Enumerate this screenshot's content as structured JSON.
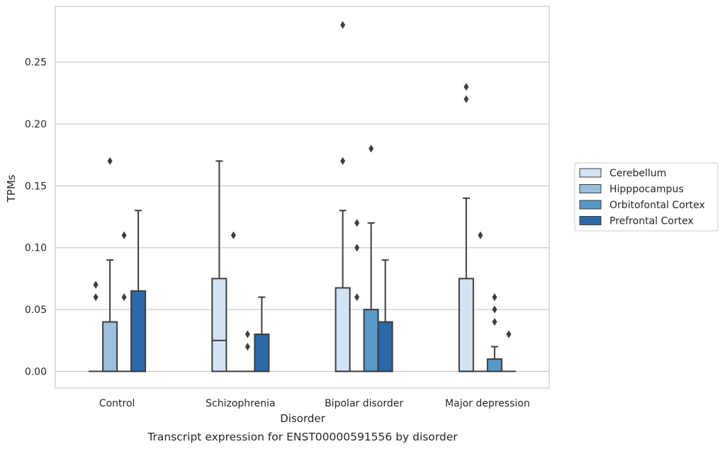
{
  "chart_data": {
    "type": "boxplot",
    "title": "",
    "caption": "Transcript expression for ENST00000591556 by disorder",
    "xlabel": "Disorder",
    "ylabel": "TPMs",
    "ylim": [
      -0.0135,
      0.295
    ],
    "yticks": [
      0.0,
      0.05,
      0.1,
      0.15,
      0.2,
      0.25
    ],
    "ytick_labels": [
      "0.00",
      "0.05",
      "0.10",
      "0.15",
      "0.20",
      "0.25"
    ],
    "grid": "horizontal",
    "legend_position": "right",
    "categories": [
      "Control",
      "Schizophrenia",
      "Bipolar disorder",
      "Major depression"
    ],
    "series": [
      {
        "name": "Cerebellum",
        "color": "#d4e3f3",
        "boxes": [
          {
            "q1": 0.0,
            "median": 0.0,
            "q3": 0.0,
            "whislo": 0.0,
            "whishi": 0.0,
            "fliers": [
              0.06,
              0.07,
              0.07
            ]
          },
          {
            "q1": 0.0,
            "median": 0.025,
            "q3": 0.075,
            "whislo": 0.0,
            "whishi": 0.17,
            "fliers": []
          },
          {
            "q1": 0.0,
            "median": 0.0,
            "q3": 0.0675,
            "whislo": 0.0,
            "whishi": 0.13,
            "fliers": [
              0.17,
              0.28
            ]
          },
          {
            "q1": 0.0,
            "median": 0.0,
            "q3": 0.075,
            "whislo": 0.0,
            "whishi": 0.14,
            "fliers": [
              0.22,
              0.23
            ]
          }
        ]
      },
      {
        "name": "Hipppocampus",
        "color": "#9dc0da",
        "boxes": [
          {
            "q1": 0.0,
            "median": 0.0,
            "q3": 0.04,
            "whislo": 0.0,
            "whishi": 0.09,
            "fliers": [
              0.17
            ]
          },
          {
            "q1": 0.0,
            "median": 0.0,
            "q3": 0.0,
            "whislo": 0.0,
            "whishi": 0.0,
            "fliers": [
              0.11
            ]
          },
          {
            "q1": 0.0,
            "median": 0.0,
            "q3": 0.0,
            "whislo": 0.0,
            "whishi": 0.0,
            "fliers": [
              0.06,
              0.1,
              0.12
            ]
          },
          {
            "q1": 0.0,
            "median": 0.0,
            "q3": 0.0,
            "whislo": 0.0,
            "whishi": 0.0,
            "fliers": [
              0.11
            ]
          }
        ]
      },
      {
        "name": "Orbitofontal Cortex",
        "color": "#5898c6",
        "boxes": [
          {
            "q1": 0.0,
            "median": 0.0,
            "q3": 0.0,
            "whislo": 0.0,
            "whishi": 0.0,
            "fliers": [
              0.06,
              0.11
            ]
          },
          {
            "q1": 0.0,
            "median": 0.0,
            "q3": 0.0,
            "whislo": 0.0,
            "whishi": 0.0,
            "fliers": [
              0.02,
              0.03
            ]
          },
          {
            "q1": 0.0,
            "median": 0.0,
            "q3": 0.05,
            "whislo": 0.0,
            "whishi": 0.12,
            "fliers": [
              0.18
            ]
          },
          {
            "q1": 0.0,
            "median": 0.0,
            "q3": 0.01,
            "whislo": 0.0,
            "whishi": 0.02,
            "fliers": [
              0.04,
              0.05,
              0.06
            ]
          }
        ]
      },
      {
        "name": "Prefrontal Cortex",
        "color": "#2b68a8",
        "boxes": [
          {
            "q1": 0.0,
            "median": 0.0,
            "q3": 0.065,
            "whislo": 0.0,
            "whishi": 0.13,
            "fliers": []
          },
          {
            "q1": 0.0,
            "median": 0.0,
            "q3": 0.03,
            "whislo": 0.0,
            "whishi": 0.06,
            "fliers": []
          },
          {
            "q1": 0.0,
            "median": 0.0,
            "q3": 0.04,
            "whislo": 0.0,
            "whishi": 0.09,
            "fliers": []
          },
          {
            "q1": 0.0,
            "median": 0.0,
            "q3": 0.0,
            "whislo": 0.0,
            "whishi": 0.0,
            "fliers": [
              0.03
            ]
          }
        ]
      }
    ]
  }
}
